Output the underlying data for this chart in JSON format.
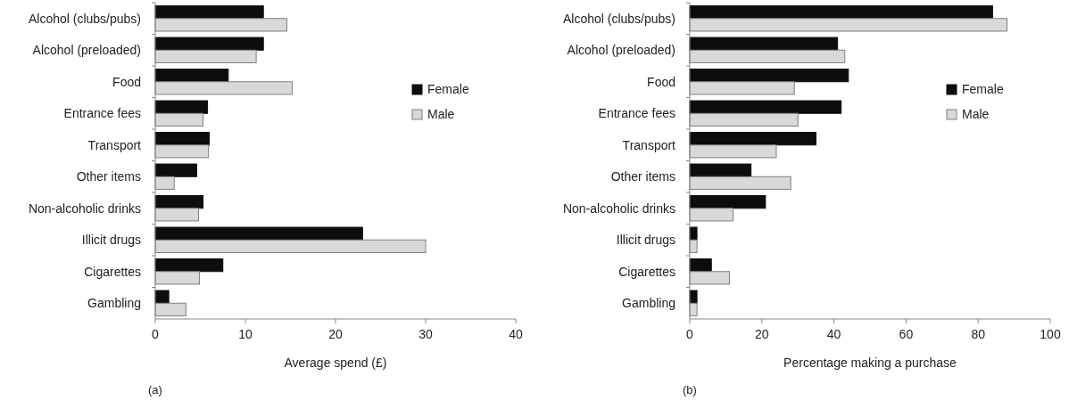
{
  "chart_data": [
    {
      "type": "bar",
      "orientation": "horizontal",
      "xlabel": "Average spend (£)",
      "annotations": [
        "(a)"
      ],
      "categories": [
        "Alcohol (clubs/pubs)",
        "Alcohol (preloaded)",
        "Food",
        "Entrance fees",
        "Transport",
        "Other items",
        "Non-alcoholic drinks",
        "Illicit drugs",
        "Cigarettes",
        "Gambling"
      ],
      "series": [
        {
          "name": "Female",
          "color": "#0d0d0d",
          "values": [
            12,
            12,
            8.1,
            5.8,
            6,
            4.6,
            5.3,
            23,
            7.5,
            1.5
          ]
        },
        {
          "name": "Male",
          "color": "#d9d9d9",
          "values": [
            14.6,
            11.2,
            15.2,
            5.3,
            5.9,
            2.1,
            4.8,
            30,
            4.9,
            3.4
          ]
        }
      ],
      "xlim": [
        0,
        40
      ],
      "xticks": [
        0,
        10,
        20,
        30,
        40
      ],
      "grid": false,
      "legend": "right"
    },
    {
      "type": "bar",
      "orientation": "horizontal",
      "xlabel": "Percentage making a purchase",
      "annotations": [
        "(b)"
      ],
      "categories": [
        "Alcohol (clubs/pubs)",
        "Alcohol (preloaded)",
        "Food",
        "Entrance fees",
        "Transport",
        "Other items",
        "Non-alcoholic drinks",
        "Illicit drugs",
        "Cigarettes",
        "Gambling"
      ],
      "series": [
        {
          "name": "Female",
          "color": "#0d0d0d",
          "values": [
            84,
            41,
            44,
            42,
            35,
            17,
            21,
            2,
            6,
            2
          ]
        },
        {
          "name": "Male",
          "color": "#d9d9d9",
          "values": [
            88,
            43,
            29,
            30,
            24,
            28,
            12,
            2,
            11,
            2
          ]
        }
      ],
      "xlim": [
        0,
        100
      ],
      "xticks": [
        0,
        20,
        40,
        60,
        80,
        100
      ],
      "grid": false,
      "legend": "right"
    }
  ]
}
